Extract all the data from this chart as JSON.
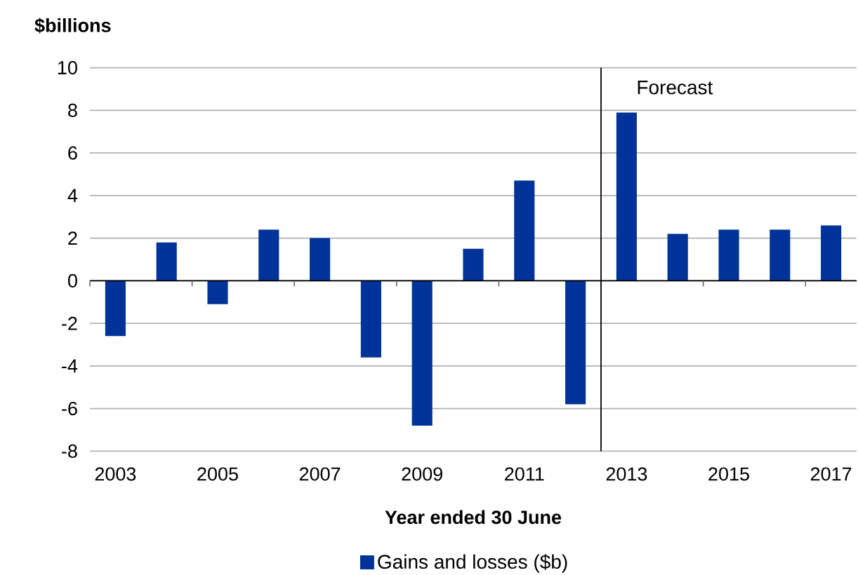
{
  "chart_data": {
    "type": "bar",
    "xlabel": "Year ended 30 June",
    "ylabel": "$billions",
    "x": [
      2003,
      2004,
      2005,
      2006,
      2007,
      2008,
      2009,
      2010,
      2011,
      2012,
      2013,
      2014,
      2015,
      2016,
      2017
    ],
    "series": [
      {
        "name": "Gains and losses ($b)",
        "color": "#003399",
        "values": [
          -2.6,
          1.8,
          -1.1,
          2.4,
          2.0,
          -3.6,
          -6.8,
          1.5,
          4.7,
          -5.8,
          7.9,
          2.2,
          2.4,
          2.4,
          2.6
        ]
      }
    ],
    "xlim": [
      2002.5,
      2017.5
    ],
    "xticks": [
      2003,
      2005,
      2007,
      2009,
      2011,
      2013,
      2015,
      2017
    ],
    "ylim": [
      -8,
      10
    ],
    "yticks": [
      -8,
      -6,
      -4,
      -2,
      0,
      2,
      4,
      6,
      8,
      10
    ],
    "grid": "y",
    "legend": "bottom",
    "ref_lines": [
      {
        "axis": "x",
        "value": 2012.5,
        "label": "Forecast",
        "color": "#000000"
      }
    ]
  }
}
